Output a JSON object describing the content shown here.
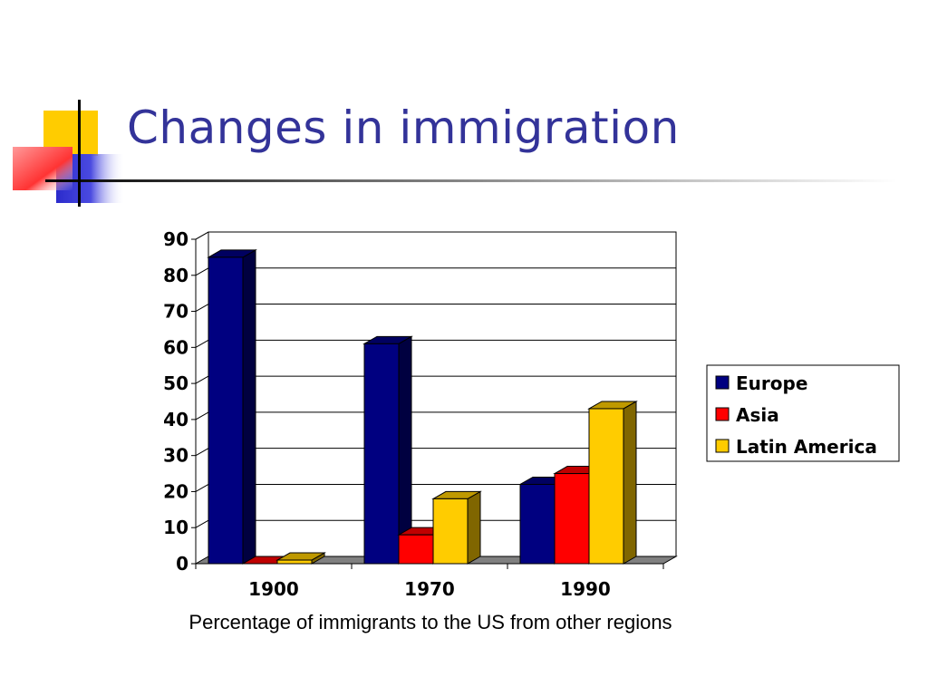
{
  "slide": {
    "title": "Changes in immigration",
    "caption": "Percentage of immigrants to the US from other regions"
  },
  "colors": {
    "title": "#333399",
    "europe": "#000080",
    "asia": "#FF0000",
    "latin_america": "#FFCC00",
    "floor": "#808080"
  },
  "chart_data": {
    "type": "bar",
    "title": "",
    "xlabel": "",
    "ylabel": "",
    "categories": [
      "1900",
      "1970",
      "1990"
    ],
    "series": [
      {
        "name": "Europe",
        "values": [
          85,
          61,
          22
        ]
      },
      {
        "name": "Asia",
        "values": [
          0,
          8,
          25
        ]
      },
      {
        "name": "Latin America",
        "values": [
          1,
          18,
          43
        ]
      }
    ],
    "ylim": [
      0,
      90
    ],
    "yticks": [
      0,
      10,
      20,
      30,
      40,
      50,
      60,
      70,
      80,
      90
    ],
    "grid": true,
    "legend": "right",
    "style": "3d-clustered-column"
  }
}
